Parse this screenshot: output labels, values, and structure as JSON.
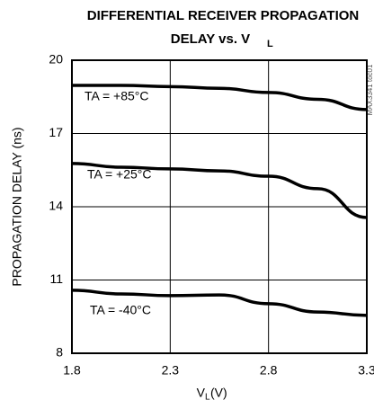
{
  "chart_data": {
    "type": "line",
    "title_lines": [
      "DIFFERENTIAL RECEIVER PROPAGATION",
      "DELAY vs. V"
    ],
    "title_subscript": "L",
    "xlabel": "V",
    "xlabel_subscript": "L",
    "xlabel_unit": " (V)",
    "ylabel": "PROPAGATION DELAY (ns)",
    "note": "MAX3341 toc01",
    "x": [
      1.8,
      2.05,
      2.3,
      2.55,
      2.8,
      3.05,
      3.3
    ],
    "series": [
      {
        "name": "TA = +85°C",
        "color": "#000000",
        "values": [
          18.97,
          18.97,
          18.92,
          18.85,
          18.68,
          18.4,
          17.98
        ]
      },
      {
        "name": "TA = +25°C",
        "color": "#000000",
        "values": [
          15.77,
          15.62,
          15.55,
          15.47,
          15.25,
          14.74,
          13.56
        ]
      },
      {
        "name": "TA = -40°C",
        "color": "#000000",
        "values": [
          10.58,
          10.43,
          10.36,
          10.39,
          10.03,
          9.69,
          9.55
        ]
      }
    ],
    "xlim": [
      1.8,
      3.3
    ],
    "xticks": [
      1.8,
      2.3,
      2.8,
      3.3
    ],
    "ylim": [
      8,
      20
    ],
    "yticks": [
      8,
      11,
      14,
      17,
      20
    ],
    "grid": true
  }
}
